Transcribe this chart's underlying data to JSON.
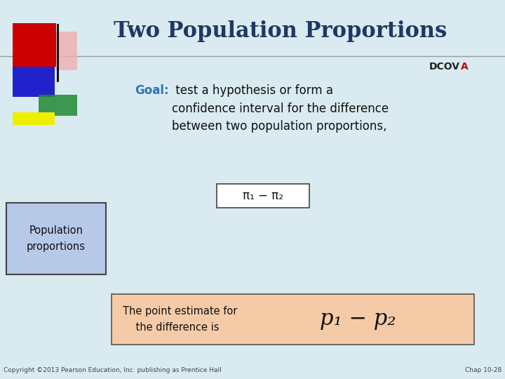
{
  "title": "Two Population Proportions",
  "title_color": "#1F3864",
  "dcov_text": "DCOV",
  "dcov_a": "A",
  "dcov_a_color": "#CC0000",
  "background_color": "#D9EBF0",
  "line_color": "#999999",
  "goal_label": "Goal:",
  "goal_label_color": "#2E75B6",
  "goal_text": " test a hypothesis or form a\nconfidence interval for the difference\nbetween two population proportions,",
  "goal_text_color": "#111111",
  "formula_box_text": "π₁ − π₂",
  "formula_box_color": "#FFFFFF",
  "formula_box_edge": "#444444",
  "pop_box_text": "Population\nproportions",
  "pop_box_bg": "#B8C9E8",
  "pop_box_edge": "#444444",
  "point_box_text": "The point estimate for\n    the difference is",
  "point_box_bg": "#F5CBA7",
  "point_box_edge": "#555555",
  "point_formula": "p₁ − p₂",
  "copyright_text": "Copyright ©2013 Pearson Education, Inc. publishing as Prentice Hall",
  "chap_text": "Chap 10-28",
  "slide_bg": "#D9EBF0"
}
